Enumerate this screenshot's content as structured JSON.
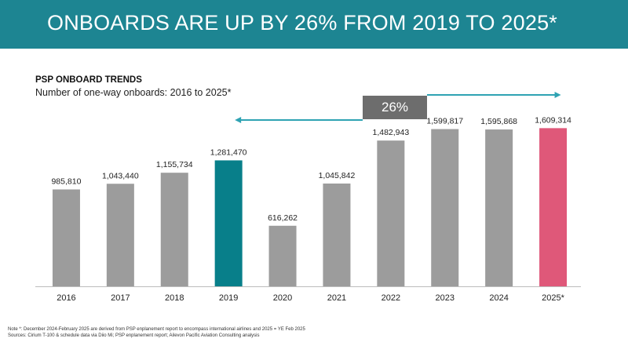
{
  "header": {
    "title": "ONBOARDS ARE UP BY 26% FROM 2019 TO 2025*"
  },
  "chart_data": {
    "type": "bar",
    "title": "PSP ONBOARD TRENDS",
    "subtitle": "Number of one-way onboards: 2016 to 2025*",
    "categories": [
      "2016",
      "2017",
      "2018",
      "2019",
      "2020",
      "2021",
      "2022",
      "2023",
      "2024",
      "2025*"
    ],
    "values": [
      985810,
      1043440,
      1155734,
      1281470,
      616262,
      1045842,
      1482943,
      1599817,
      1595868,
      1609314
    ],
    "value_labels": [
      "985,810",
      "1,043,440",
      "1,155,734",
      "1,281,470",
      "616,262",
      "1,045,842",
      "1,482,943",
      "1,599,817",
      "1,595,868",
      "1,609,314"
    ],
    "bar_colors": [
      "#9c9c9c",
      "#9c9c9c",
      "#9c9c9c",
      "#087f8a",
      "#9c9c9c",
      "#9c9c9c",
      "#9c9c9c",
      "#9c9c9c",
      "#9c9c9c",
      "#df5879"
    ],
    "ylim": [
      0,
      1700000
    ],
    "annotation": {
      "label": "26%",
      "from": "2019",
      "to": "2025*",
      "arrow_color": "#2fa3b3"
    },
    "xlabel": "",
    "ylabel": ""
  },
  "notes": {
    "note": "Note *:  December 2024-February 2025 are derived from PSP enplanement report to encompass international airlines and 2025 = YE Feb 2025",
    "sources": "Sources: Cirium T-100 & schedule data via Diio Mi; PSP enplanement report; Ailevon Pacific Aviation Consulting analysis"
  },
  "colors": {
    "banner": "#1d8592",
    "default_bar": "#9c9c9c",
    "highlight_2019": "#087f8a",
    "highlight_2025": "#df5879",
    "axis": "#bdbdbd",
    "growth_box": "#6d6d6d"
  }
}
